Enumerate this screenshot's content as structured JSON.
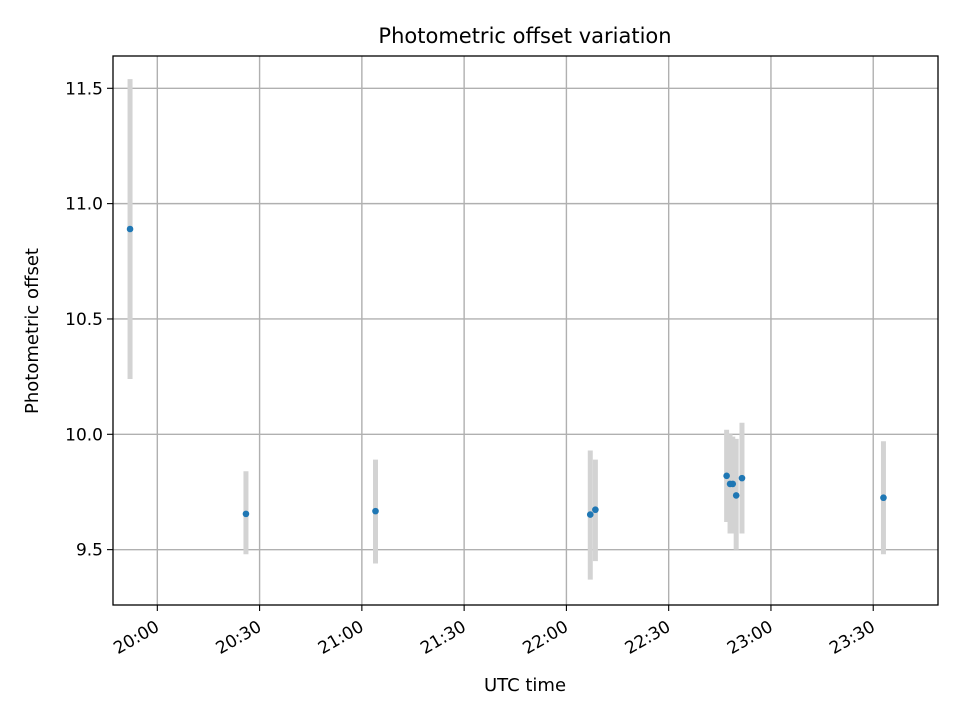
{
  "chart_data": {
    "type": "scatter",
    "title": "Photometric offset variation",
    "xlabel": "UTC time",
    "ylabel": "Photometric offset",
    "x_unit": "UTC clock time (HH:MM)",
    "xlim": [
      "19:47",
      "23:49"
    ],
    "ylim": [
      9.26,
      11.64
    ],
    "x_ticks": [
      "20:00",
      "20:30",
      "21:00",
      "21:30",
      "22:00",
      "22:30",
      "23:00",
      "23:30"
    ],
    "y_ticks": [
      9.5,
      10.0,
      10.5,
      11.0,
      11.5
    ],
    "y_tick_labels": [
      "9.5",
      "10.0",
      "10.5",
      "11.0",
      "11.5"
    ],
    "grid": true,
    "legend": "none",
    "colors": {
      "point": "#1f77b4",
      "errorbar": "#d3d3d3",
      "grid": "#b0b0b0"
    },
    "points": [
      {
        "x": "19:52",
        "y": 10.89,
        "ylow": 10.24,
        "yhigh": 11.54
      },
      {
        "x": "20:26",
        "y": 9.655,
        "ylow": 9.48,
        "yhigh": 9.84
      },
      {
        "x": "21:04",
        "y": 9.667,
        "ylow": 9.44,
        "yhigh": 9.89
      },
      {
        "x": "22:07",
        "y": 9.652,
        "ylow": 9.37,
        "yhigh": 9.93
      },
      {
        "x": "22:08.5",
        "y": 9.673,
        "ylow": 9.45,
        "yhigh": 9.89
      },
      {
        "x": "22:47",
        "y": 9.82,
        "ylow": 9.62,
        "yhigh": 10.02
      },
      {
        "x": "22:48",
        "y": 9.785,
        "ylow": 9.57,
        "yhigh": 10.0
      },
      {
        "x": "22:48.8",
        "y": 9.785,
        "ylow": 9.57,
        "yhigh": 9.99
      },
      {
        "x": "22:49.8",
        "y": 9.735,
        "ylow": 9.5,
        "yhigh": 9.98
      },
      {
        "x": "22:51.5",
        "y": 9.81,
        "ylow": 9.57,
        "yhigh": 10.05
      },
      {
        "x": "23:33",
        "y": 9.725,
        "ylow": 9.48,
        "yhigh": 9.97
      }
    ]
  }
}
